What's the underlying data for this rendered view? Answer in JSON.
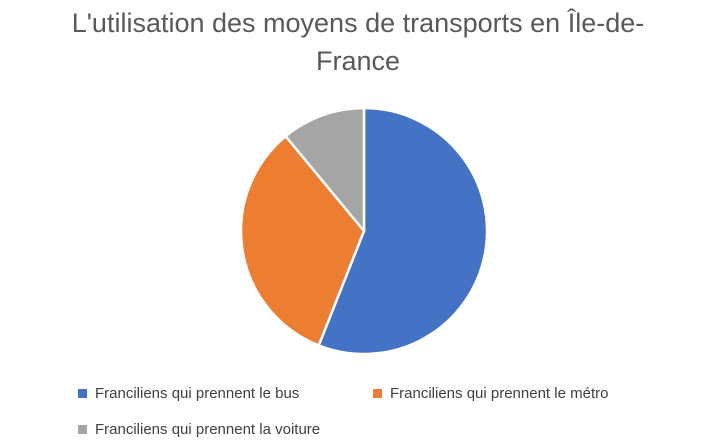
{
  "chart_data": {
    "type": "pie",
    "title": "L'utilisation des moyens de transports en Île-de-France",
    "title_lines": [
      "L'utilisation des moyens de transports en Île-de-",
      "France"
    ],
    "categories": [
      "Franciliens qui prennent le bus",
      "Franciliens qui prennent le métro",
      "Franciliens qui prennent la voiture"
    ],
    "values": [
      56,
      33,
      11
    ],
    "colors": [
      "#4472C4",
      "#ED7D31",
      "#A5A5A5"
    ],
    "legend_position": "bottom"
  }
}
